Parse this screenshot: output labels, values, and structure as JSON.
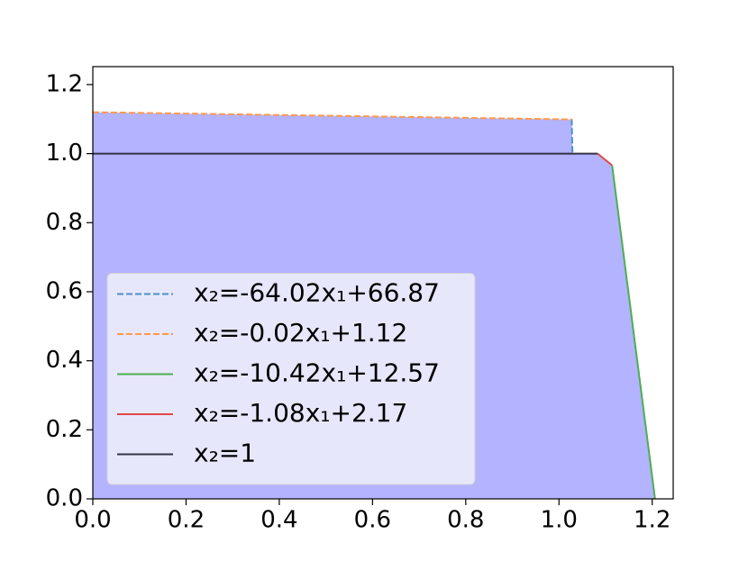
{
  "chart_data": {
    "type": "line",
    "xlim": [
      0,
      1.245
    ],
    "ylim": [
      0,
      1.252
    ],
    "xticks": [
      {
        "value": 0,
        "label": "0.0"
      },
      0.2,
      0.4,
      0.6,
      0.8,
      {
        "value": 1,
        "label": "1.0"
      },
      1.2
    ],
    "yticks": [
      {
        "value": 0,
        "label": "0.0"
      },
      0.2,
      0.4,
      0.6,
      0.8,
      {
        "value": 1,
        "label": "1.0"
      },
      1.2
    ],
    "fill": {
      "color": "#b3b3ff",
      "x": [
        0,
        0,
        1.028,
        1.029,
        1.083,
        1.114,
        1.206
      ],
      "y": [
        0,
        1.12,
        1.099,
        1.0,
        1.0,
        0.966,
        0
      ]
    },
    "legend": "lower left",
    "series": [
      {
        "name": "x₂=-64.02x₁+66.87",
        "color": "#4a90c8",
        "linestyle": "dashed",
        "x": [
          1.0273,
          1.0289
        ],
        "values": [
          1.1,
          1.0
        ]
      },
      {
        "name": "x₂=-0.02x₁+1.12",
        "color": "#ff9a4a",
        "linestyle": "dashed",
        "x": [
          0,
          1.028
        ],
        "values": [
          1.12,
          1.099
        ]
      },
      {
        "name": "x₂=-10.42x₁+12.57",
        "color": "#4caf50",
        "linestyle": "solid",
        "x": [
          1.114,
          1.206
        ],
        "values": [
          0.966,
          0
        ]
      },
      {
        "name": "x₂=-1.08x₁+2.17",
        "color": "#e04848",
        "linestyle": "solid",
        "x": [
          1.083,
          1.114
        ],
        "values": [
          1.0,
          0.966
        ]
      },
      {
        "name": "x₂=1",
        "color": "#333344",
        "linestyle": "solid",
        "x": [
          0,
          1.083
        ],
        "values": [
          1,
          1
        ]
      }
    ]
  }
}
